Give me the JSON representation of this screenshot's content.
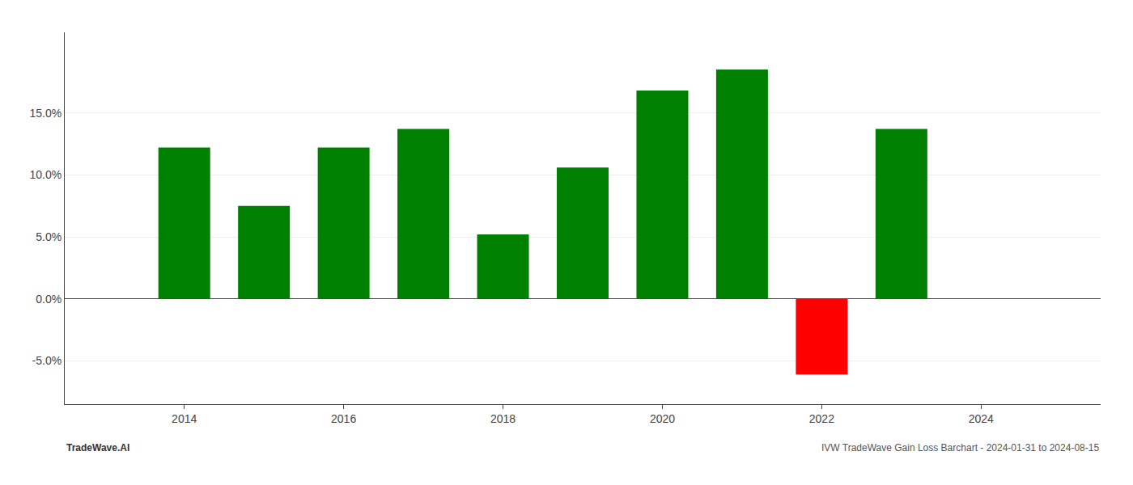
{
  "chart_data": {
    "type": "bar",
    "x": [
      2014,
      2015,
      2016,
      2017,
      2018,
      2019,
      2020,
      2021,
      2022,
      2023
    ],
    "values": [
      0.122,
      0.075,
      0.122,
      0.137,
      0.052,
      0.106,
      0.168,
      0.185,
      -0.061,
      0.137
    ],
    "colors": [
      "#008000",
      "#008000",
      "#008000",
      "#008000",
      "#008000",
      "#008000",
      "#008000",
      "#008000",
      "#ff0000",
      "#008000"
    ],
    "xlim": [
      2012.5,
      2025.5
    ],
    "xticks": [
      2014,
      2016,
      2018,
      2020,
      2022,
      2024
    ],
    "ylim": [
      -0.085,
      0.215
    ],
    "yticks": [
      {
        "value": -0.05,
        "label": "-5.0%"
      },
      {
        "value": 0.0,
        "label": "0.0%"
      },
      {
        "value": 0.05,
        "label": "5.0%"
      },
      {
        "value": 0.1,
        "label": "10.0%"
      },
      {
        "value": 0.15,
        "label": "15.0%"
      }
    ],
    "grid": true,
    "annotations": [
      "TradeWave.AI",
      "IVW TradeWave Gain Loss Barchart - 2024-01-31 to 2024-08-15"
    ]
  }
}
